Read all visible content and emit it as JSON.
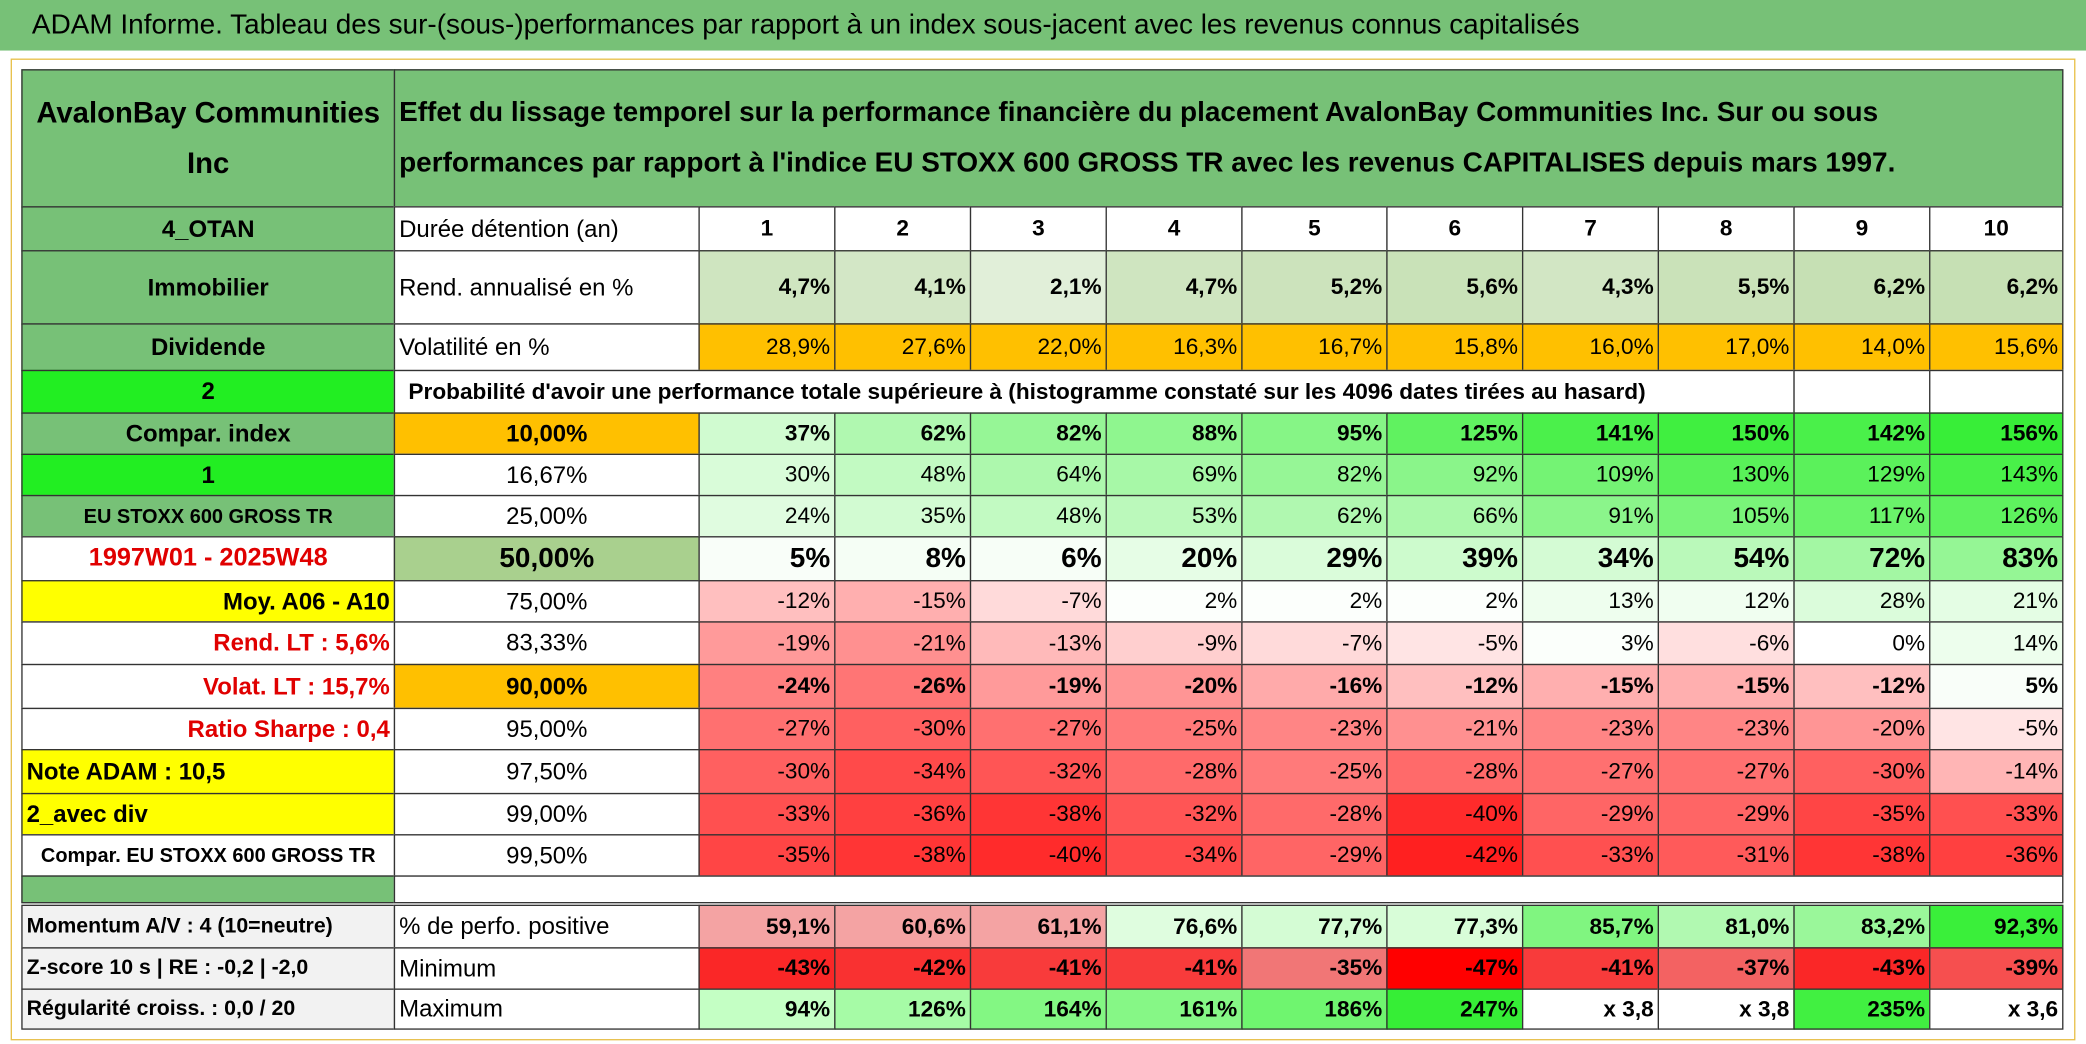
{
  "title": "ADAM Informe. Tableau des sur-(sous-)performances par rapport à un index sous-jacent avec les revenus connus capitalisés",
  "header": {
    "company": "AvalonBay Communities Inc",
    "description": "Effet du lissage temporel sur la performance financière du placement AvalonBay Communities Inc. Sur ou sous performances par rapport à l'indice EU STOXX 600 GROSS TR avec les revenus CAPITALISES depuis mars 1997."
  },
  "table": {
    "rows": [
      [
        "4_OTAN",
        "Durée détention (an)",
        "1",
        "2",
        "3",
        "4",
        "5",
        "6",
        "7",
        "8",
        "9",
        "10"
      ],
      [
        "Immobilier",
        "Rend. annualisé en %",
        "4,7%",
        "4,1%",
        "2,1%",
        "4,7%",
        "5,2%",
        "5,6%",
        "4,3%",
        "5,5%",
        "6,2%",
        "6,2%"
      ],
      [
        "Dividende",
        "Volatilité en %",
        "28,9%",
        "27,6%",
        "22,0%",
        "16,3%",
        "16,7%",
        "15,8%",
        "16,0%",
        "17,0%",
        "14,0%",
        "15,6%"
      ],
      [
        "2",
        "Probabilité d'avoir une performance totale supérieure à (histogramme constaté sur les 4096 dates tirées au hasard)"
      ],
      [
        "Compar. index",
        "10,00%",
        "37%",
        "62%",
        "82%",
        "88%",
        "95%",
        "125%",
        "141%",
        "150%",
        "142%",
        "156%"
      ],
      [
        "1",
        "16,67%",
        "30%",
        "48%",
        "64%",
        "69%",
        "82%",
        "92%",
        "109%",
        "130%",
        "129%",
        "143%"
      ],
      [
        "EU STOXX 600 GROSS TR",
        "25,00%",
        "24%",
        "35%",
        "48%",
        "53%",
        "62%",
        "66%",
        "91%",
        "105%",
        "117%",
        "126%"
      ],
      [
        "1997W01 - 2025W48",
        "50,00%",
        "5%",
        "8%",
        "6%",
        "20%",
        "29%",
        "39%",
        "34%",
        "54%",
        "72%",
        "83%"
      ],
      [
        "Moy. A06 - A10",
        "75,00%",
        "-12%",
        "-15%",
        "-7%",
        "2%",
        "2%",
        "2%",
        "13%",
        "12%",
        "28%",
        "21%"
      ],
      [
        "Rend. LT :   5,6%",
        "83,33%",
        "-19%",
        "-21%",
        "-13%",
        "-9%",
        "-7%",
        "-5%",
        "3%",
        "-6%",
        "0%",
        "14%"
      ],
      [
        "Volat. LT :   15,7%",
        "90,00%",
        "-24%",
        "-26%",
        "-19%",
        "-20%",
        "-16%",
        "-12%",
        "-15%",
        "-15%",
        "-12%",
        "5%"
      ],
      [
        "Ratio Sharpe :   0,4",
        "95,00%",
        "-27%",
        "-30%",
        "-27%",
        "-25%",
        "-23%",
        "-21%",
        "-23%",
        "-23%",
        "-20%",
        "-5%"
      ],
      [
        "Note ADAM : 10,5",
        "97,50%",
        "-30%",
        "-34%",
        "-32%",
        "-28%",
        "-25%",
        "-28%",
        "-27%",
        "-27%",
        "-30%",
        "-14%"
      ],
      [
        "2_avec div",
        "99,00%",
        "-33%",
        "-36%",
        "-38%",
        "-32%",
        "-28%",
        "-40%",
        "-29%",
        "-29%",
        "-35%",
        "-33%"
      ],
      [
        "Compar. EU STOXX 600 GROSS TR",
        "99,50%",
        "-35%",
        "-38%",
        "-40%",
        "-34%",
        "-29%",
        "-42%",
        "-33%",
        "-31%",
        "-38%",
        "-36%"
      ],
      [
        "Momentum A/V : 4 (10=neutre)",
        "% de perfo. positive",
        "59,1%",
        "60,6%",
        "61,1%",
        "76,6%",
        "77,7%",
        "77,3%",
        "85,7%",
        "81,0%",
        "83,2%",
        "92,3%"
      ],
      [
        "Z-score 10 s | RE : -0,2 | -2,0",
        "Minimum",
        "-43%",
        "-42%",
        "-41%",
        "-41%",
        "-35%",
        "-47%",
        "-41%",
        "-37%",
        "-43%",
        "-39%"
      ],
      [
        "Régularité croiss. : 0,0 / 20",
        "Maximum",
        "94%",
        "126%",
        "164%",
        "161%",
        "186%",
        "247%",
        "x 3,8",
        "x 3,8",
        "235%",
        "x 3,6"
      ]
    ]
  }
}
